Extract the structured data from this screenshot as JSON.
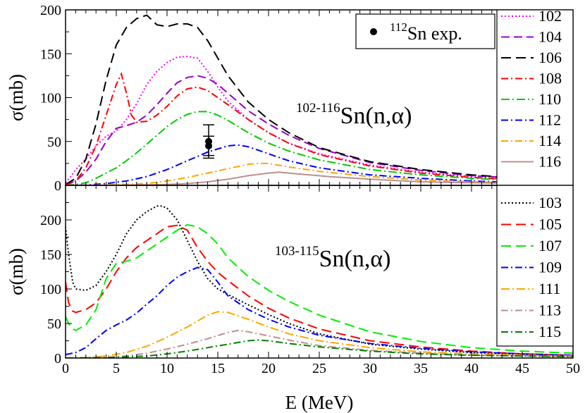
{
  "chart_data": [
    {
      "type": "line",
      "title_sup": "102-116",
      "title_main": "Sn(n,α)",
      "xlabel": "",
      "ylabel": "σ(mb)",
      "xlim": [
        0,
        50
      ],
      "ylim": [
        0,
        200
      ],
      "yticks": [
        0,
        50,
        100,
        150,
        200
      ],
      "exp_legend": {
        "sup": "112",
        "text": "Sn exp."
      },
      "experiment": [
        {
          "x": 14.1,
          "y": 50,
          "err": 19
        },
        {
          "x": 14.1,
          "y": 45,
          "err": 11
        }
      ],
      "series": [
        {
          "name": "102",
          "color": "#ff00ff",
          "dash": "2,3",
          "x": [
            0,
            0.5,
            1,
            2,
            3,
            4,
            5,
            6,
            7,
            8,
            9,
            10,
            11,
            12,
            13,
            14,
            15,
            16,
            18,
            20,
            22,
            25,
            30,
            35,
            40,
            45,
            50
          ],
          "y": [
            3,
            10,
            18,
            30,
            45,
            56,
            62,
            75,
            93,
            115,
            130,
            140,
            146,
            147,
            145,
            130,
            112,
            96,
            75,
            60,
            48,
            36,
            23,
            15,
            10,
            7,
            5
          ]
        },
        {
          "name": "104",
          "color": "#9900cc",
          "dash": "12,6",
          "x": [
            0,
            1,
            2,
            3,
            4,
            5,
            6,
            7,
            8,
            9,
            10,
            11,
            12,
            13,
            14,
            15,
            16,
            18,
            20,
            22,
            25,
            30,
            35,
            40,
            45,
            50
          ],
          "y": [
            1,
            5,
            15,
            30,
            50,
            65,
            68,
            72,
            80,
            92,
            105,
            117,
            123,
            125,
            122,
            115,
            105,
            85,
            70,
            57,
            42,
            26,
            17,
            11,
            8,
            5
          ]
        },
        {
          "name": "106",
          "color": "#000000",
          "dash": "14,7",
          "x": [
            0,
            1,
            2,
            3,
            4,
            5,
            6,
            7,
            8,
            9,
            10,
            11,
            12,
            13,
            14,
            15,
            16,
            18,
            20,
            22,
            25,
            30,
            35,
            40,
            45,
            50
          ],
          "y": [
            1,
            8,
            30,
            70,
            120,
            160,
            180,
            190,
            194,
            183,
            181,
            184,
            184,
            180,
            165,
            145,
            125,
            95,
            75,
            60,
            43,
            27,
            18,
            12,
            8,
            6
          ]
        },
        {
          "name": "108",
          "color": "#ff0000",
          "dash": "10,4,2,4",
          "x": [
            0,
            1,
            2,
            3,
            4,
            5,
            5.5,
            6,
            6.5,
            7,
            8,
            9,
            10,
            11,
            12,
            13,
            14,
            15,
            16,
            18,
            20,
            22,
            25,
            30,
            35,
            40,
            45,
            50
          ],
          "y": [
            0,
            5,
            20,
            45,
            80,
            115,
            127,
            105,
            80,
            72,
            73,
            80,
            90,
            102,
            110,
            112,
            108,
            100,
            92,
            75,
            60,
            48,
            35,
            22,
            14,
            9,
            6,
            4
          ]
        },
        {
          "name": "110",
          "color": "#00cc00",
          "dash": "12,4,2,4",
          "x": [
            0,
            1,
            2,
            3,
            4,
            5,
            6,
            7,
            8,
            9,
            10,
            11,
            12,
            13,
            14,
            15,
            16,
            18,
            20,
            22,
            25,
            30,
            35,
            40,
            45,
            50
          ],
          "y": [
            0,
            1,
            3,
            8,
            14,
            20,
            28,
            37,
            47,
            57,
            67,
            75,
            81,
            84,
            84,
            80,
            74,
            60,
            48,
            39,
            29,
            18,
            12,
            8,
            5,
            3
          ]
        },
        {
          "name": "112",
          "color": "#0000ff",
          "dash": "10,4,2,4",
          "x": [
            0,
            2,
            4,
            6,
            8,
            10,
            12,
            14,
            16,
            17,
            18,
            20,
            22,
            25,
            30,
            35,
            40,
            45,
            50
          ],
          "y": [
            0,
            0.5,
            2,
            5,
            10,
            18,
            28,
            38,
            45,
            46,
            44,
            36,
            28,
            20,
            12,
            8,
            5,
            3,
            2
          ]
        },
        {
          "name": "114",
          "color": "#ffa500",
          "dash": "10,4,2,4",
          "x": [
            0,
            4,
            8,
            10,
            12,
            14,
            16,
            18,
            19,
            20,
            22,
            25,
            30,
            35,
            40,
            45,
            50
          ],
          "y": [
            0,
            0.5,
            2,
            5,
            9,
            14,
            19,
            24,
            25,
            25,
            21,
            16,
            10,
            6,
            4,
            2.5,
            2
          ]
        },
        {
          "name": "116",
          "color": "#bc8f8f",
          "dash": "",
          "x": [
            0,
            6,
            10,
            12,
            14,
            16,
            18,
            20,
            21,
            22,
            24,
            26,
            30,
            35,
            40,
            45,
            50
          ],
          "y": [
            0,
            0.2,
            1,
            2,
            4,
            7,
            11,
            14,
            15,
            14,
            12,
            10,
            7,
            4,
            3,
            2,
            1.5
          ]
        }
      ]
    },
    {
      "type": "line",
      "title_sup": "103-115",
      "title_main": "Sn(n,α)",
      "xlabel": "E (MeV)",
      "ylabel": "σ(mb)",
      "xlim": [
        0,
        50
      ],
      "ylim": [
        0,
        250
      ],
      "yticks": [
        0,
        50,
        100,
        150,
        200
      ],
      "xticks": [
        0,
        5,
        10,
        15,
        20,
        25,
        30,
        35,
        40,
        45,
        50
      ],
      "series": [
        {
          "name": "103",
          "color": "#000000",
          "dash": "2,3",
          "x": [
            0,
            0.3,
            0.7,
            1,
            2,
            3,
            4,
            5,
            6,
            7,
            8,
            9,
            9.5,
            10,
            11,
            12,
            13,
            14,
            15,
            16,
            18,
            20,
            22,
            25,
            30,
            35,
            40,
            45,
            50
          ],
          "y": [
            190,
            150,
            110,
            100,
            98,
            105,
            125,
            150,
            180,
            200,
            212,
            220,
            220,
            217,
            200,
            170,
            140,
            115,
            100,
            92,
            77,
            63,
            50,
            35,
            20,
            13,
            8,
            5,
            4
          ]
        },
        {
          "name": "105",
          "color": "#ff0000",
          "dash": "14,7",
          "x": [
            0,
            0.3,
            0.7,
            1,
            2,
            3,
            4,
            5,
            6,
            7,
            8,
            9,
            10,
            11,
            12,
            13,
            14,
            15,
            16,
            18,
            20,
            22,
            25,
            30,
            35,
            40,
            45,
            50
          ],
          "y": [
            110,
            80,
            68,
            66,
            70,
            80,
            100,
            125,
            145,
            160,
            170,
            180,
            190,
            192,
            185,
            160,
            140,
            124,
            112,
            90,
            72,
            58,
            42,
            25,
            16,
            10,
            6,
            4
          ]
        },
        {
          "name": "107",
          "color": "#00ee00",
          "dash": "14,7",
          "x": [
            0,
            0.3,
            0.7,
            1,
            2,
            3,
            4,
            5,
            6,
            7,
            8,
            9,
            10,
            11,
            12,
            13,
            14,
            15,
            16,
            18,
            20,
            22,
            25,
            30,
            35,
            40,
            45,
            50
          ],
          "y": [
            60,
            50,
            42,
            40,
            48,
            70,
            115,
            137,
            140,
            145,
            155,
            165,
            175,
            185,
            193,
            190,
            180,
            165,
            145,
            118,
            98,
            82,
            62,
            38,
            24,
            15,
            10,
            7
          ]
        },
        {
          "name": "109",
          "color": "#0000ff",
          "dash": "10,4,2,4",
          "x": [
            0,
            1,
            2,
            3,
            4,
            5,
            6,
            7,
            8,
            9,
            10,
            11,
            12,
            13,
            14,
            15,
            16,
            18,
            20,
            22,
            25,
            30,
            35,
            40,
            45,
            50
          ],
          "y": [
            5,
            8,
            15,
            28,
            40,
            48,
            55,
            65,
            78,
            90,
            105,
            117,
            125,
            131,
            128,
            110,
            90,
            70,
            56,
            45,
            33,
            21,
            14,
            9,
            6,
            4
          ]
        },
        {
          "name": "111",
          "color": "#ffa500",
          "dash": "12,4,2,4",
          "x": [
            0,
            2,
            4,
            6,
            8,
            10,
            12,
            14,
            15,
            16,
            18,
            20,
            22,
            25,
            30,
            35,
            40,
            45,
            50
          ],
          "y": [
            0,
            0.5,
            3,
            8,
            17,
            30,
            45,
            62,
            67,
            66,
            56,
            45,
            35,
            25,
            15,
            9,
            6,
            4,
            3
          ]
        },
        {
          "name": "113",
          "color": "#bc8f8f",
          "dash": "10,4,2,4",
          "x": [
            0,
            4,
            6,
            8,
            10,
            12,
            14,
            16,
            17,
            18,
            20,
            22,
            25,
            30,
            35,
            40,
            45,
            50
          ],
          "y": [
            0,
            1,
            3,
            7,
            13,
            20,
            28,
            37,
            40,
            38,
            32,
            26,
            18,
            11,
            7,
            4,
            3,
            2
          ]
        },
        {
          "name": "115",
          "color": "#008000",
          "dash": "10,4,2,4",
          "x": [
            0,
            4,
            8,
            10,
            12,
            14,
            16,
            18,
            19,
            20,
            22,
            25,
            30,
            35,
            40,
            45,
            50
          ],
          "y": [
            0,
            0.5,
            3,
            6,
            10,
            15,
            20,
            25,
            26,
            25,
            21,
            16,
            10,
            6,
            4,
            3,
            2
          ]
        }
      ]
    }
  ]
}
